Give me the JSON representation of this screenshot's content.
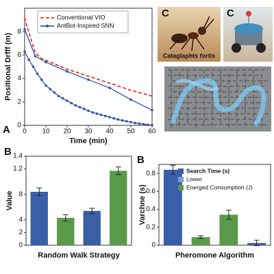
{
  "chart_data": [
    {
      "type": "line",
      "panel_label": "A",
      "xlabel": "Time (min)",
      "ylabel": "Positional Drfff (m)",
      "xlim": [
        0,
        60
      ],
      "xticks": [
        0,
        10,
        20,
        30,
        40,
        50,
        60
      ],
      "ylim": [
        0,
        10
      ],
      "yticks": [
        0,
        2,
        4,
        6,
        8
      ],
      "legend": "upper center",
      "series": [
        {
          "name": "Conventional VIO",
          "color": "#d9352f",
          "dashed": true,
          "markers": false,
          "x": [
            0,
            1,
            5,
            8,
            20,
            30,
            40,
            50,
            60
          ],
          "values": [
            9.2,
            8.5,
            6.2,
            5.7,
            4.8,
            4.2,
            3.6,
            3.0,
            2.5
          ]
        },
        {
          "name": "AntBot-Inspired SNN",
          "color": "#2f55a4",
          "dashed": false,
          "markers": true,
          "x": [
            0,
            5,
            10,
            20,
            30,
            40,
            50,
            60
          ],
          "values": [
            8.2,
            5.9,
            5.4,
            4.6,
            3.9,
            3.2,
            2.2,
            1.3
          ]
        },
        {
          "color": "#2f55a4",
          "dashed": false,
          "markers": true,
          "x": [
            0,
            2,
            4,
            6,
            8,
            10,
            12,
            14,
            16,
            18,
            20,
            22,
            24,
            26,
            28,
            30,
            32,
            34,
            36,
            38,
            40,
            42,
            44,
            46,
            48,
            50,
            52,
            54,
            56,
            58,
            60
          ],
          "values": [
            6.3,
            5.6,
            5.0,
            4.4,
            3.9,
            3.4,
            3.1,
            2.8,
            2.5,
            2.3,
            2.1,
            1.9,
            1.7,
            1.55,
            1.4,
            1.25,
            1.1,
            1.0,
            0.9,
            0.8,
            0.7,
            0.6,
            0.5,
            0.42,
            0.35,
            0.28,
            0.2,
            0.15,
            0.1,
            0.05,
            0.02
          ]
        }
      ]
    },
    {
      "type": "bar",
      "panel_label": "B",
      "xlabel": "Random Walk Strategy",
      "ylabel": "Value",
      "ylim": [
        0,
        1.4
      ],
      "yticks": [
        0,
        {
          "value": 0.2,
          "label": "2"
        },
        {
          "value": 0.4,
          "label": "4"
        },
        {
          "value": 0.8,
          "label": "8"
        },
        1.2,
        1.4
      ],
      "values": [
        0.84,
        0.43,
        0.54,
        1.17
      ],
      "errors": [
        0.06,
        0.05,
        0.04,
        0.06
      ],
      "colors": [
        "#3a5fa8",
        "#5a9a4a",
        "#3a5fa8",
        "#5a9a4a"
      ]
    },
    {
      "type": "bar",
      "panel_label": "B",
      "xlabel": "Pheromone Algorithm",
      "ylabel": "Varchne (s)",
      "ylim": [
        0,
        0.9
      ],
      "yticks": [
        0,
        0.2,
        0.4,
        0.6,
        0.8
      ],
      "values": [
        0.84,
        0.09,
        0.34,
        0.025
      ],
      "errors": [
        0.05,
        0.015,
        0.05,
        0.03
      ],
      "colors": [
        "#3a5fa8",
        "#5a9a4a",
        "#5a9a4a",
        "#3a5fa8"
      ],
      "legend": "upper right",
      "legend_items": [
        {
          "label": "Search Time (s)",
          "color": "#3a5fa8"
        },
        {
          "label": "Lower",
          "color": "#7f9ccc"
        },
        {
          "label": "Energed Consumption (J)",
          "color": "#5a9a4a"
        }
      ]
    }
  ],
  "images": [
    {
      "label": "C",
      "caption": "Cataglaphts fortis"
    },
    {
      "label": "C"
    }
  ]
}
